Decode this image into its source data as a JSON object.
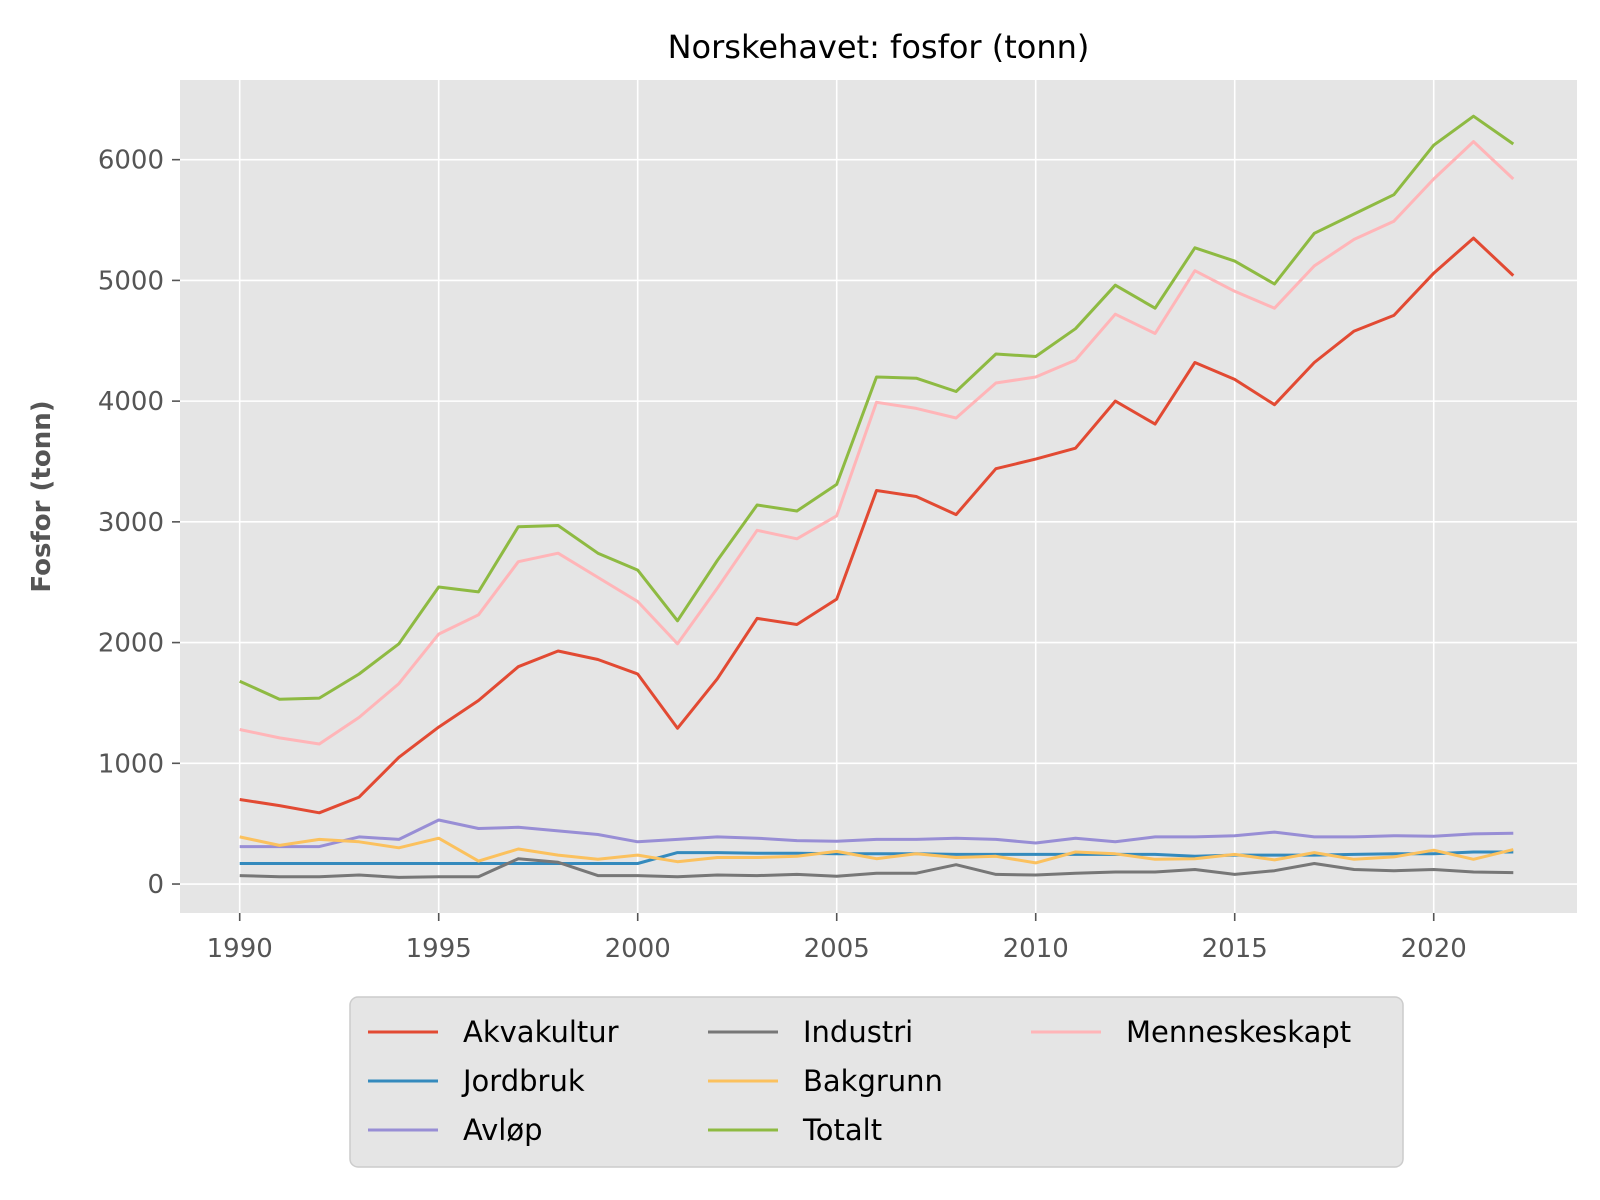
{
  "chart_data": {
    "type": "line",
    "title": "Norskehavet: fosfor (tonn)",
    "xlabel": "",
    "ylabel": "Fosfor (tonn)",
    "xlim": [
      1988.5,
      2023.6
    ],
    "ylim": [
      -240,
      6660
    ],
    "xticks": [
      1990,
      1995,
      2000,
      2005,
      2010,
      2015,
      2020
    ],
    "yticks": [
      0,
      1000,
      2000,
      3000,
      4000,
      5000,
      6000
    ],
    "grid": true,
    "background": "#e5e5e5",
    "legend_position": "bottom-center",
    "x": [
      1990,
      1991,
      1992,
      1993,
      1994,
      1995,
      1996,
      1997,
      1998,
      1999,
      2000,
      2001,
      2002,
      2003,
      2004,
      2005,
      2006,
      2007,
      2008,
      2009,
      2010,
      2011,
      2012,
      2013,
      2014,
      2015,
      2016,
      2017,
      2018,
      2019,
      2020,
      2021,
      2022
    ],
    "series": [
      {
        "name": "Akvakultur",
        "color": "#e24a33",
        "values": [
          700,
          650,
          590,
          720,
          1050,
          1300,
          1520,
          1800,
          1930,
          1860,
          1740,
          1290,
          1700,
          2200,
          2150,
          2360,
          3260,
          3210,
          3060,
          3440,
          3520,
          3610,
          4000,
          3810,
          4320,
          4180,
          3970,
          4320,
          4580,
          4710,
          5060,
          5350,
          5040
        ]
      },
      {
        "name": "Jordbruk",
        "color": "#348abd",
        "values": [
          170,
          170,
          170,
          170,
          170,
          170,
          170,
          170,
          170,
          170,
          170,
          260,
          260,
          255,
          255,
          250,
          250,
          250,
          245,
          245,
          245,
          245,
          245,
          245,
          230,
          240,
          240,
          240,
          245,
          250,
          250,
          265,
          265
        ]
      },
      {
        "name": "Avløp",
        "color": "#988ed5",
        "values": [
          310,
          310,
          310,
          390,
          370,
          530,
          460,
          470,
          440,
          410,
          350,
          370,
          390,
          380,
          360,
          355,
          370,
          370,
          380,
          370,
          340,
          380,
          350,
          390,
          390,
          400,
          430,
          390,
          390,
          400,
          395,
          415,
          420
        ]
      },
      {
        "name": "Industri",
        "color": "#777777",
        "values": [
          70,
          60,
          60,
          75,
          55,
          60,
          60,
          210,
          180,
          70,
          70,
          60,
          75,
          70,
          80,
          65,
          90,
          90,
          160,
          80,
          75,
          90,
          100,
          100,
          120,
          80,
          110,
          170,
          120,
          110,
          120,
          100,
          95
        ]
      },
      {
        "name": "Bakgrunn",
        "color": "#fbc15e",
        "values": [
          390,
          320,
          370,
          350,
          300,
          380,
          190,
          290,
          240,
          205,
          240,
          185,
          220,
          220,
          230,
          270,
          210,
          250,
          220,
          230,
          175,
          265,
          250,
          205,
          210,
          245,
          200,
          260,
          205,
          225,
          280,
          205,
          285
        ]
      },
      {
        "name": "Totalt",
        "color": "#8eba42",
        "values": [
          1680,
          1530,
          1540,
          1740,
          1990,
          2460,
          2420,
          2960,
          2970,
          2740,
          2600,
          2180,
          2680,
          3140,
          3090,
          3310,
          4200,
          4190,
          4080,
          4390,
          4370,
          4600,
          4960,
          4770,
          5270,
          5160,
          4970,
          5390,
          5550,
          5710,
          6120,
          6360,
          6130
        ]
      },
      {
        "name": "Menneskeskapt",
        "color": "#ffb5b8",
        "values": [
          1280,
          1210,
          1160,
          1380,
          1660,
          2070,
          2230,
          2670,
          2740,
          2540,
          2340,
          1990,
          2450,
          2930,
          2860,
          3050,
          3990,
          3940,
          3860,
          4150,
          4200,
          4340,
          4720,
          4560,
          5080,
          4910,
          4770,
          5120,
          5340,
          5490,
          5840,
          6150,
          5840
        ]
      }
    ]
  }
}
